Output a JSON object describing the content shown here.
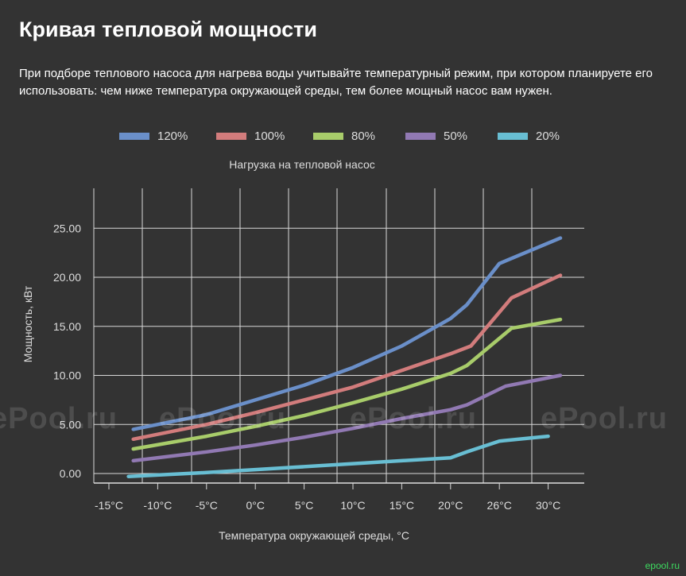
{
  "page": {
    "heading": "Кривая тепловой мощности",
    "description": "При подборе теплового насоса для нагрева воды учитывайте температурный режим, при котором планируете его использовать: чем ниже температура окружающей среды, тем более мощный насос вам нужен.",
    "watermark_text": "ePool.ru",
    "footer_logo": "epool.ru"
  },
  "chart_data": {
    "type": "line",
    "title": "Нагрузка на тепловой насос",
    "xlabel": "Температура окружающей среды, °C",
    "ylabel": "Мощность, кВт",
    "x_ticks": [
      "-15°C",
      "-10°C",
      "-5°C",
      "0°C",
      "5°C",
      "10°C",
      "15°C",
      "20°C",
      "26°C",
      "30°C"
    ],
    "y_ticks": [
      "0.00",
      "5.00",
      "10.00",
      "15.00",
      "20.00",
      "25.00"
    ],
    "ylim": [
      0,
      30
    ],
    "grid": true,
    "legend_position": "top",
    "series": [
      {
        "name": "120%",
        "color": "#6a8fc9",
        "x": [
          -12.5,
          -5,
          0,
          5,
          10,
          15,
          20,
          22,
          26,
          31
        ],
        "y": [
          4.5,
          6.0,
          7.5,
          9.0,
          10.8,
          13.0,
          15.8,
          17.2,
          21.4,
          24.0
        ]
      },
      {
        "name": "100%",
        "color": "#d27c7c",
        "x": [
          -12.5,
          -5,
          0,
          5,
          10,
          15,
          20,
          22.5,
          27,
          31
        ],
        "y": [
          3.5,
          5.0,
          6.2,
          7.5,
          8.8,
          10.5,
          12.2,
          13.0,
          17.9,
          20.2
        ]
      },
      {
        "name": "80%",
        "color": "#a8cc6a",
        "x": [
          -12.5,
          -5,
          0,
          5,
          10,
          15,
          20,
          22,
          27,
          31
        ],
        "y": [
          2.5,
          3.8,
          4.8,
          5.9,
          7.2,
          8.6,
          10.2,
          11.0,
          14.8,
          15.7
        ]
      },
      {
        "name": "50%",
        "color": "#9179b3",
        "x": [
          -12.5,
          -5,
          0,
          5,
          10,
          15,
          20,
          22,
          26.5,
          31
        ],
        "y": [
          1.3,
          2.2,
          2.9,
          3.7,
          4.6,
          5.6,
          6.5,
          7.0,
          8.9,
          10.0
        ]
      },
      {
        "name": "20%",
        "color": "#68bed3",
        "x": [
          -13,
          -5,
          0,
          5,
          10,
          15,
          20,
          22,
          26,
          30
        ],
        "y": [
          -0.3,
          0.1,
          0.4,
          0.7,
          1.0,
          1.3,
          1.6,
          2.2,
          3.3,
          3.8
        ]
      }
    ]
  }
}
